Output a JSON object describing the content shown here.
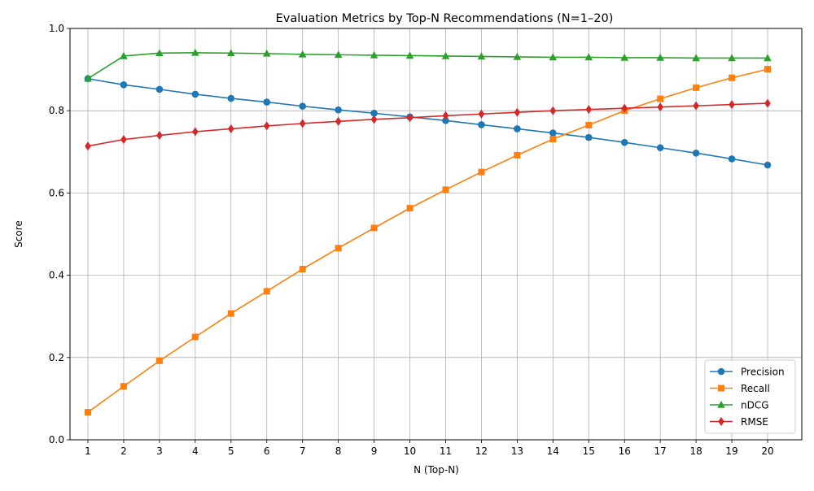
{
  "chart_data": {
    "type": "line",
    "title": "Evaluation Metrics by Top-N Recommendations (N=1–20)",
    "xlabel": "N (Top-N)",
    "ylabel": "Score",
    "x": [
      1,
      2,
      3,
      4,
      5,
      6,
      7,
      8,
      9,
      10,
      11,
      12,
      13,
      14,
      15,
      16,
      17,
      18,
      19,
      20
    ],
    "ylim": [
      0,
      1.0
    ],
    "yticks": [
      "0.0",
      "0.2",
      "0.4",
      "0.6",
      "0.8",
      "1.0"
    ],
    "grid": true,
    "legend_position": "lower-right",
    "series": [
      {
        "name": "Precision",
        "color": "#1f77b4",
        "marker": "circle",
        "values": [
          0.878,
          0.863,
          0.852,
          0.84,
          0.83,
          0.821,
          0.811,
          0.802,
          0.794,
          0.785,
          0.776,
          0.766,
          0.756,
          0.746,
          0.735,
          0.723,
          0.71,
          0.697,
          0.683,
          0.668
        ]
      },
      {
        "name": "Recall",
        "color": "#ff7f0e",
        "marker": "square",
        "values": [
          0.067,
          0.13,
          0.192,
          0.25,
          0.307,
          0.361,
          0.415,
          0.466,
          0.515,
          0.563,
          0.608,
          0.651,
          0.692,
          0.731,
          0.765,
          0.8,
          0.829,
          0.856,
          0.88,
          0.901
        ]
      },
      {
        "name": "nDCG",
        "color": "#2ca02c",
        "marker": "triangle",
        "values": [
          0.878,
          0.933,
          0.94,
          0.941,
          0.94,
          0.939,
          0.937,
          0.936,
          0.935,
          0.934,
          0.933,
          0.932,
          0.931,
          0.93,
          0.93,
          0.929,
          0.929,
          0.928,
          0.928,
          0.928
        ]
      },
      {
        "name": "RMSE",
        "color": "#d62728",
        "marker": "diamond",
        "values": [
          0.714,
          0.73,
          0.74,
          0.749,
          0.756,
          0.763,
          0.769,
          0.774,
          0.779,
          0.783,
          0.788,
          0.792,
          0.796,
          0.8,
          0.803,
          0.806,
          0.809,
          0.812,
          0.815,
          0.818
        ]
      }
    ]
  }
}
